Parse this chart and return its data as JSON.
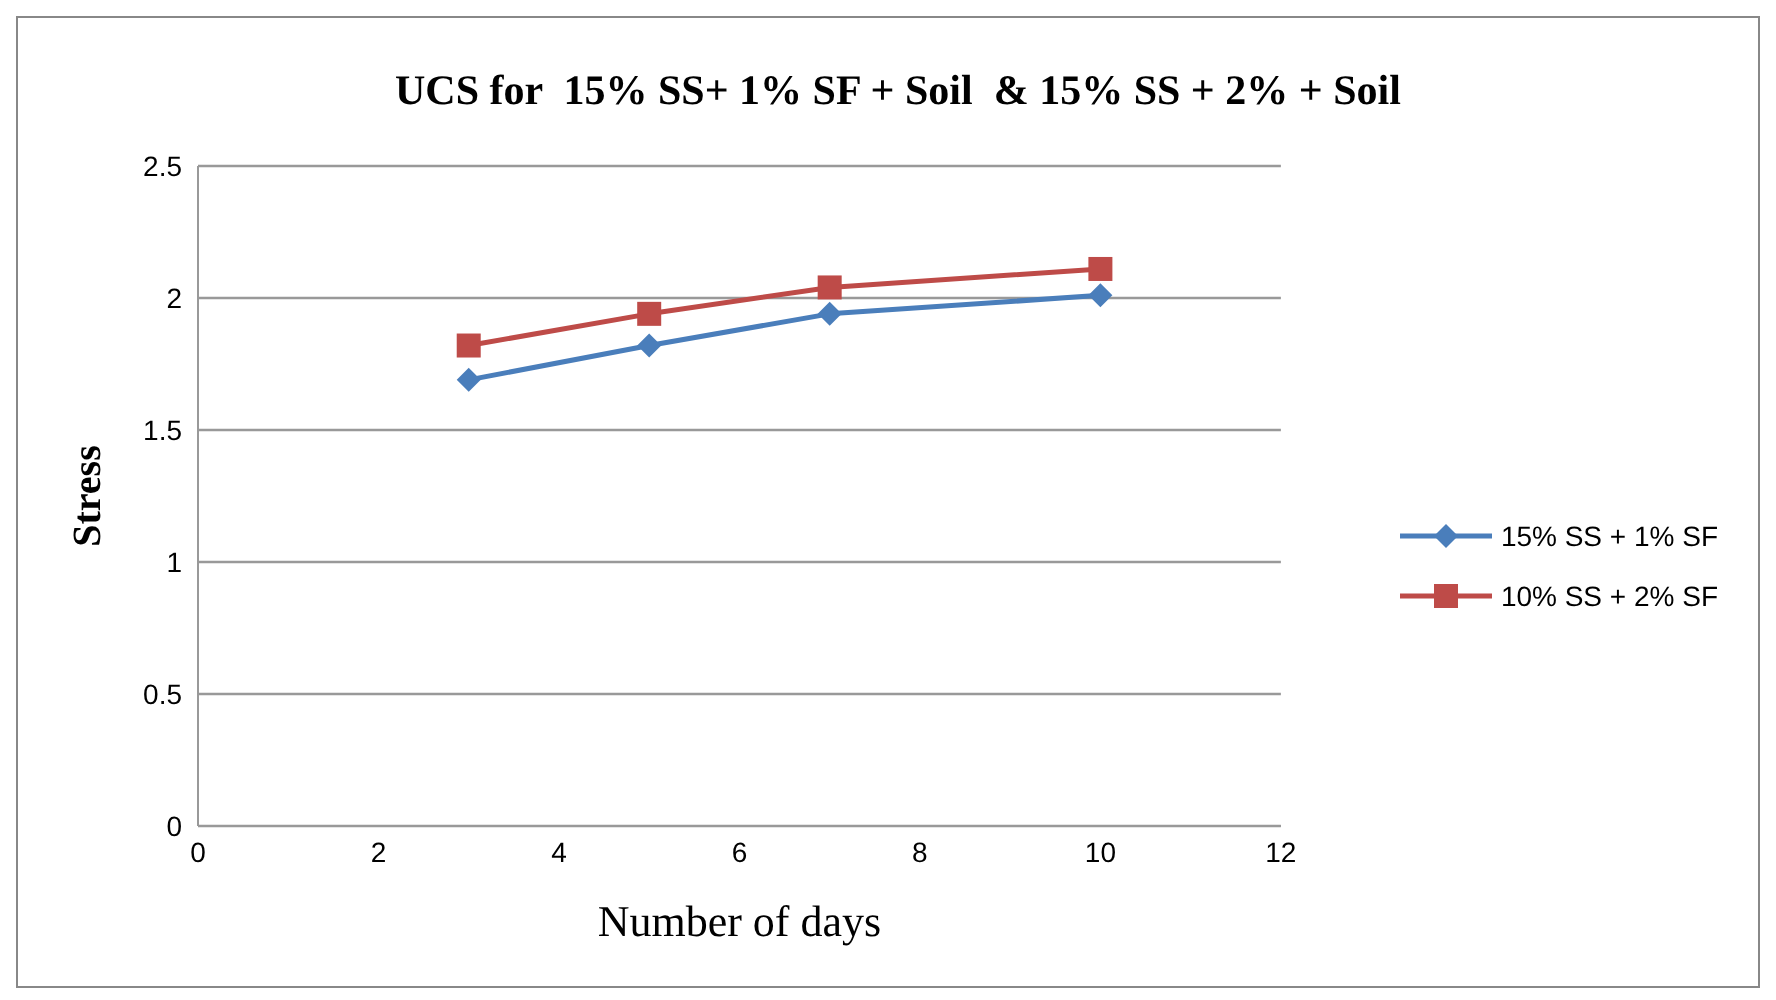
{
  "chart_data": {
    "type": "line",
    "title": "UCS for  15% SS+ 1% SF + Soil  & 15% SS + 2% + Soil",
    "xlabel": "Number of days",
    "ylabel": "Stress",
    "x": [
      3,
      5,
      7,
      10
    ],
    "series": [
      {
        "name": "15% SS + 1% SF",
        "color": "#4a7ebb",
        "marker": "diamond",
        "values": [
          1.69,
          1.82,
          1.94,
          2.01
        ]
      },
      {
        "name": "10% SS + 2% SF",
        "color": "#be4b48",
        "marker": "square",
        "values": [
          1.82,
          1.94,
          2.04,
          2.11
        ]
      }
    ],
    "xlim": [
      0,
      12
    ],
    "xticks": [
      0,
      2,
      4,
      6,
      8,
      10,
      12
    ],
    "ylim": [
      0,
      2.5
    ],
    "yticks": [
      0,
      0.5,
      1,
      1.5,
      2,
      2.5
    ],
    "grid": "y",
    "legend": "right"
  }
}
